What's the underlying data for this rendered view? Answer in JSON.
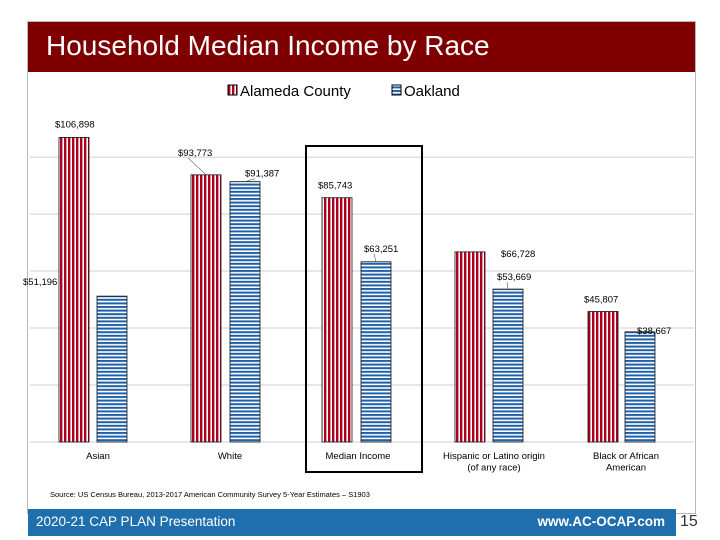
{
  "slide": {
    "title": "Household Median Income by Race",
    "source": "Source: US Census Bureau, 2013-2017 American Community Survey 5-Year Estimates – S1903",
    "footer_left": "2020-21 CAP PLAN Presentation",
    "footer_right": "www.AC-OCAP.com",
    "page_number": "15",
    "colors": {
      "title_band": "#7f0000",
      "footer_band": "#1f6fae",
      "alameda": "#b00020",
      "oakland": "#2060a8"
    }
  },
  "chart_data": {
    "type": "bar",
    "title": "Household Median Income by Race",
    "xlabel": "",
    "ylabel": "",
    "ylim": [
      0,
      110000
    ],
    "grid": true,
    "legend_position": "top",
    "categories": [
      "Asian",
      "White",
      "Median Income",
      "Hispanic or Latino origin\n(of any race)",
      "Black or African\nAmerican"
    ],
    "highlighted_category": "Median Income",
    "series": [
      {
        "name": "Alameda County",
        "values": [
          106898,
          93773,
          85743,
          66728,
          45807
        ],
        "labels": [
          "$106,898",
          "$93,773",
          "$85,743",
          "$66,728",
          "$45,807"
        ]
      },
      {
        "name": "Oakland",
        "values": [
          51196,
          91387,
          63251,
          53669,
          38667
        ],
        "labels": [
          "$51,196",
          "$91,387",
          "$63,251",
          "$53,669",
          "$38,667"
        ]
      }
    ]
  }
}
